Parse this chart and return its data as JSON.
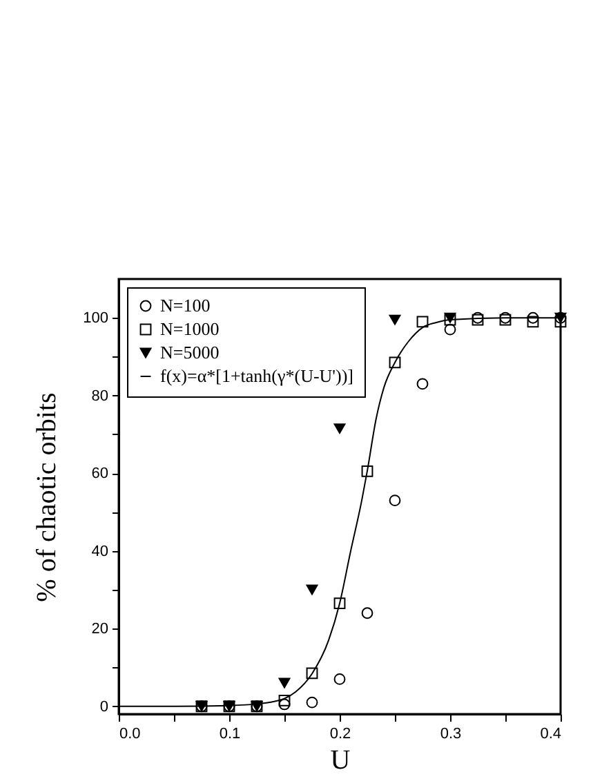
{
  "chart_data": {
    "type": "scatter",
    "xlabel": "U",
    "ylabel": "% of chaotic orbits",
    "xlim": [
      0,
      0.4
    ],
    "ylim": [
      -2,
      110
    ],
    "xticks": [
      {
        "value": 0,
        "label": "0.0"
      },
      {
        "value": 0.05,
        "label": null
      },
      0.1,
      {
        "value": 0.15,
        "label": null
      },
      0.2,
      {
        "value": 0.25,
        "label": null
      },
      0.3,
      {
        "value": 0.35,
        "label": null
      },
      0.4
    ],
    "yticks": [
      0,
      {
        "value": 10,
        "label": null
      },
      20,
      {
        "value": 30,
        "label": null
      },
      40,
      {
        "value": 50,
        "label": null
      },
      60,
      {
        "value": 70,
        "label": null
      },
      80,
      {
        "value": 90,
        "label": null
      },
      100
    ],
    "grid": false,
    "legend": "top left",
    "series": [
      {
        "name": "N=100",
        "color": "#000000",
        "marker": "circle",
        "x": [
          0.075,
          0.1,
          0.125,
          0.15,
          0.175,
          0.2,
          0.225,
          0.25,
          0.275,
          0.3,
          0.325,
          0.35,
          0.375,
          0.4
        ],
        "values": [
          0,
          0,
          0,
          0.5,
          1,
          7,
          24,
          53,
          83,
          97,
          100,
          100,
          100,
          100
        ]
      },
      {
        "name": "N=1000",
        "color": "#000000",
        "marker": "square",
        "x": [
          0.075,
          0.1,
          0.125,
          0.15,
          0.175,
          0.2,
          0.225,
          0.25,
          0.275,
          0.3,
          0.325,
          0.35,
          0.375,
          0.4
        ],
        "values": [
          0,
          0,
          0,
          1.5,
          8.5,
          26.5,
          60.5,
          88.5,
          99,
          99.5,
          99.5,
          99.5,
          99,
          99
        ]
      },
      {
        "name": "N=5000",
        "color": "#000000",
        "marker": "triangle",
        "x": [
          0.075,
          0.1,
          0.125,
          0.15,
          0.175,
          0.2,
          0.25,
          0.3,
          0.4
        ],
        "values": [
          0,
          0,
          0,
          6,
          30,
          71.5,
          99.5,
          100,
          100
        ]
      },
      {
        "name": "f(x)=α*[1+tanh(γ*(U-U'))]",
        "type": "line",
        "color": "#000000",
        "marker": "none",
        "x": [
          0,
          0.05,
          0.1,
          0.125,
          0.14,
          0.15,
          0.16,
          0.175,
          0.19,
          0.2,
          0.21,
          0.22,
          0.225,
          0.233,
          0.24,
          0.25,
          0.2625,
          0.275,
          0.2875,
          0.3,
          0.35,
          0.4
        ],
        "values": [
          0,
          0,
          0.2,
          0.6,
          1.2,
          2,
          3.7,
          8.4,
          17,
          26.5,
          40,
          53,
          60.6,
          74,
          82,
          88.5,
          94,
          97.5,
          98.8,
          99.5,
          100,
          100
        ]
      }
    ]
  }
}
